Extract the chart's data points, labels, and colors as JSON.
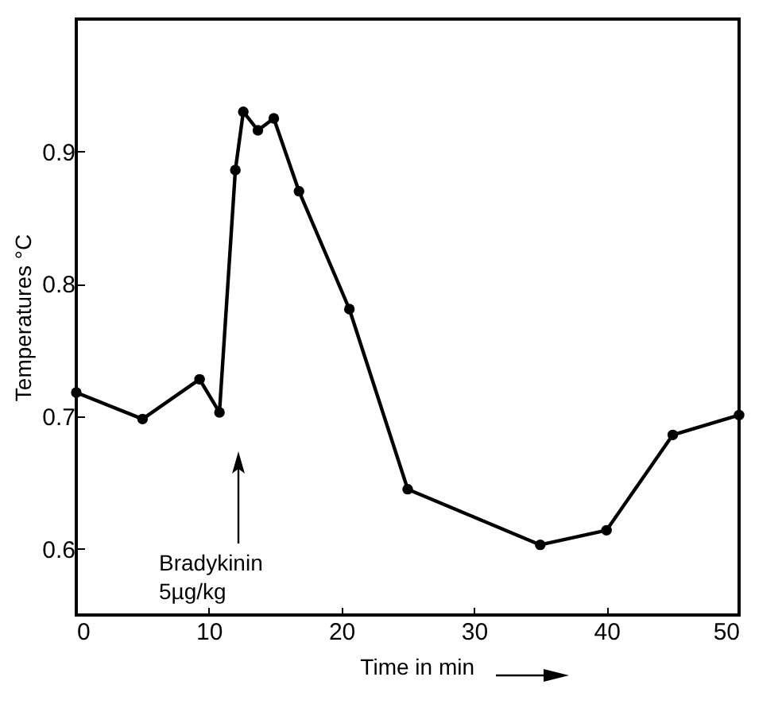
{
  "chart_data": {
    "type": "line",
    "xlabel": "Time in min",
    "ylabel": "Temperatures °C",
    "x": [
      0,
      5,
      9.3,
      10.8,
      12,
      12.6,
      13.7,
      14.9,
      16.8,
      20.6,
      25,
      35,
      40,
      45,
      50
    ],
    "series": [
      {
        "color": "#000000",
        "values": [
          0.718,
          0.698,
          0.728,
          0.703,
          0.886,
          0.93,
          0.916,
          0.925,
          0.87,
          0.781,
          0.645,
          0.603,
          0.614,
          0.686,
          0.701
        ]
      }
    ],
    "xlim": [
      0,
      50
    ],
    "xticks": [
      0,
      10,
      20,
      30,
      40,
      50
    ],
    "ylim": [
      0.55,
      1.0
    ],
    "yticks": [
      0.6,
      0.7,
      0.8,
      0.9
    ],
    "annotations": [
      "Bradykinin\n5µg/kg"
    ],
    "marker": "circle",
    "line_style": "solid",
    "grid": false,
    "legend": false
  }
}
